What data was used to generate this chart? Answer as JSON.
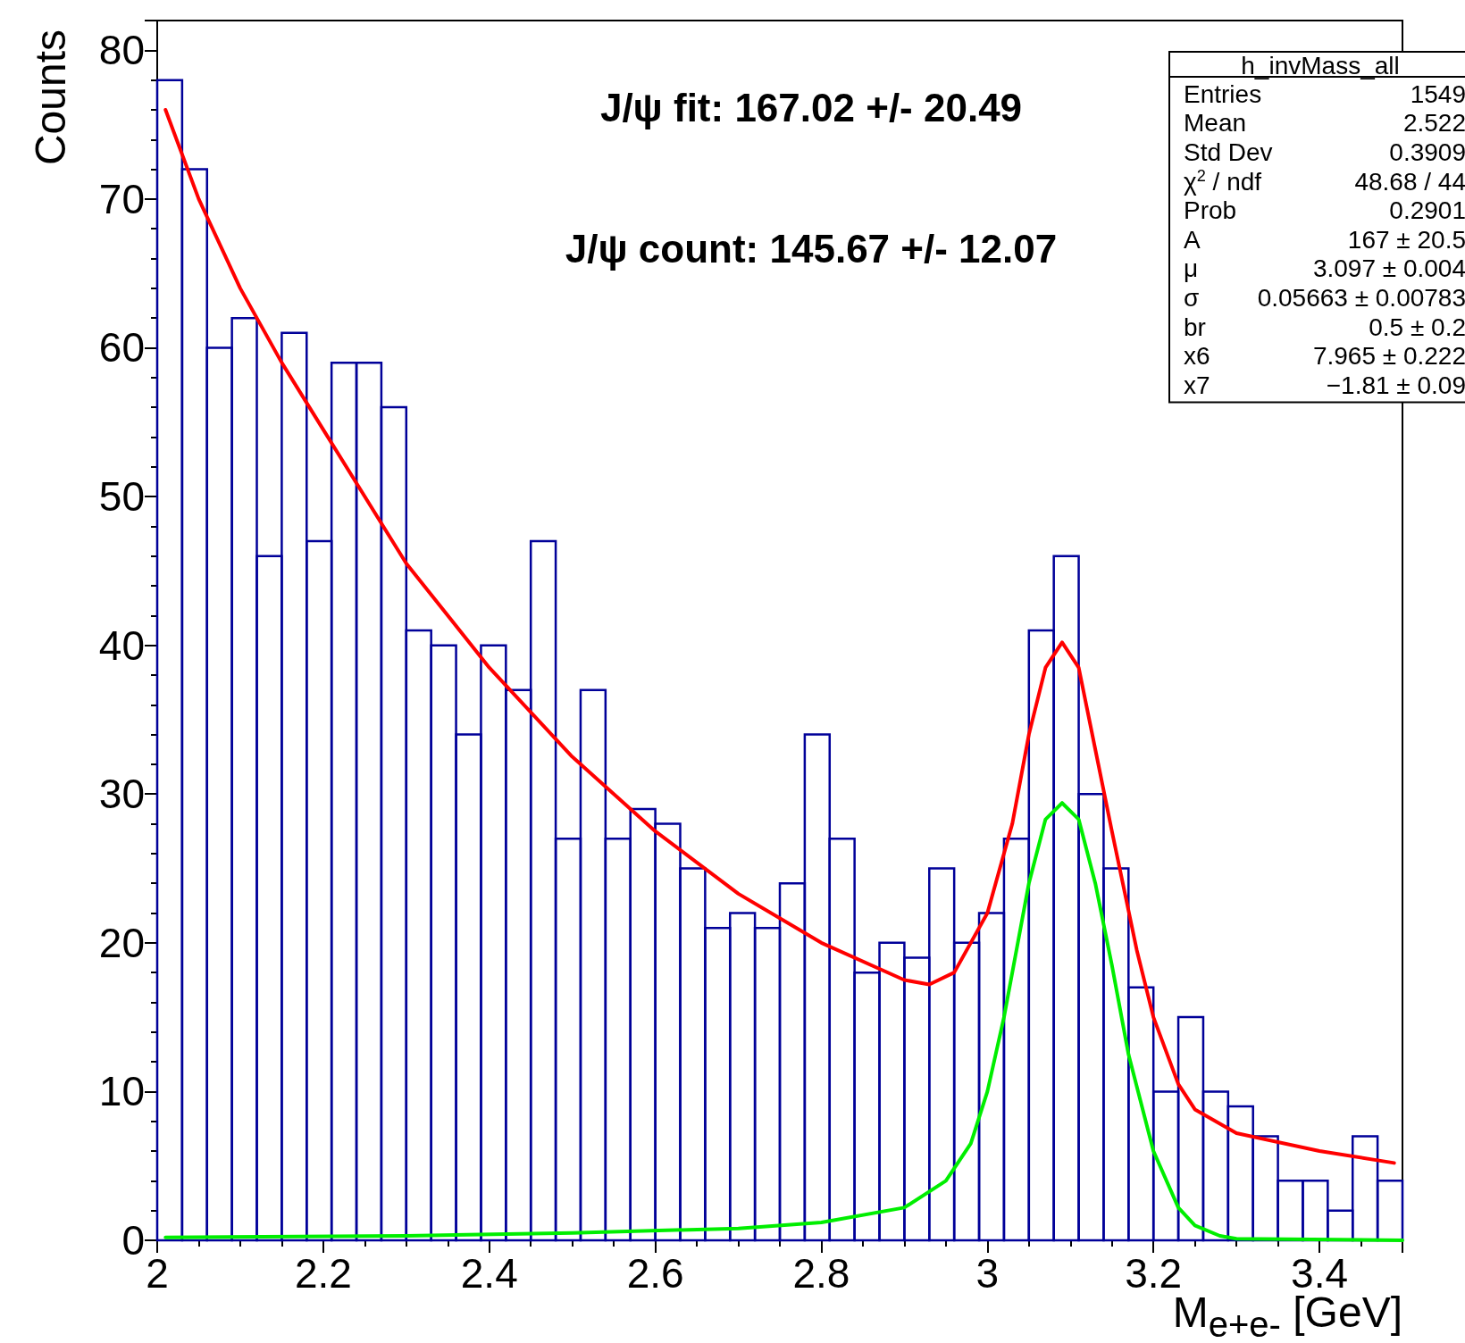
{
  "chart_data": {
    "type": "histogram",
    "xlabel": "M$_{e+e-}$ [GeV]",
    "ylabel": "Counts",
    "bins": [
      2,
      2.03,
      2.06,
      2.09,
      2.12,
      2.15,
      2.18,
      2.21,
      2.24,
      2.27,
      2.3,
      2.33,
      2.36,
      2.39,
      2.42,
      2.45,
      2.48,
      2.51,
      2.54,
      2.57,
      2.6,
      2.63,
      2.66,
      2.69,
      2.72,
      2.75,
      2.78,
      2.81,
      2.84,
      2.87,
      2.9,
      2.93,
      2.96,
      2.99,
      3.02,
      3.05,
      3.08,
      3.11,
      3.14,
      3.17,
      3.2,
      3.23,
      3.26,
      3.29,
      3.32,
      3.35,
      3.38,
      3.41,
      3.44,
      3.47,
      3.5
    ],
    "values": [
      78,
      72,
      60,
      62,
      46,
      61,
      47,
      59,
      59,
      56,
      41,
      40,
      34,
      40,
      37,
      47,
      27,
      37,
      27,
      29,
      28,
      25,
      21,
      22,
      21,
      24,
      34,
      27,
      18,
      20,
      19,
      25,
      20,
      22,
      27,
      41,
      46,
      30,
      25,
      17,
      10,
      15,
      10,
      9,
      7,
      4,
      4,
      2,
      7,
      4
    ],
    "color": "#000099",
    "series": [
      {
        "type": "line",
        "color": "#ff0000",
        "x": [
          2.01,
          2.05,
          2.1,
          2.15,
          2.2,
          2.3,
          2.4,
          2.5,
          2.6,
          2.7,
          2.8,
          2.9,
          2.93,
          2.96,
          3.0,
          3.03,
          3.05,
          3.07,
          3.09,
          3.11,
          3.13,
          3.15,
          3.18,
          3.2,
          3.23,
          3.25,
          3.3,
          3.4,
          3.49
        ],
        "values": [
          76,
          70,
          64,
          59,
          54.5,
          45.5,
          38.5,
          32.5,
          27.5,
          23.3,
          20,
          17.5,
          17.2,
          18,
          22,
          28,
          34,
          38.5,
          40.2,
          38.5,
          33,
          27.5,
          19.5,
          15,
          10.5,
          8.8,
          7.2,
          6,
          5.2
        ]
      },
      {
        "type": "line",
        "color": "#00ee00",
        "x": [
          2.01,
          2.3,
          2.5,
          2.7,
          2.8,
          2.9,
          2.95,
          2.98,
          3.0,
          3.02,
          3.05,
          3.07,
          3.09,
          3.11,
          3.13,
          3.15,
          3.17,
          3.2,
          3.23,
          3.25,
          3.28,
          3.3,
          3.5
        ],
        "values": [
          0.2,
          0.3,
          0.5,
          0.8,
          1.2,
          2.2,
          4,
          6.5,
          10,
          15,
          24,
          28.3,
          29.4,
          28.3,
          24,
          18.5,
          12.5,
          6,
          2.2,
          1,
          0.3,
          0.1,
          0
        ]
      }
    ],
    "xlim": [
      2,
      3.5
    ],
    "xticks": [
      2,
      2.2,
      2.4,
      2.6,
      2.8,
      3,
      3.2,
      3.4
    ],
    "ylim": [
      0,
      82
    ],
    "yticks": [
      0,
      10,
      20,
      30,
      40,
      50,
      60,
      70,
      80
    ],
    "grid": false,
    "marker": "none",
    "line_style": "solid",
    "annotations": [
      "J/ψ fit: 167.02 +/- 20.49",
      "J/ψ count: 145.67 +/- 12.07",
      "h_invMass_all",
      "Entries",
      "1549",
      "Mean",
      "2.522",
      "Std Dev",
      "0.3909",
      "χ$^{2}$ / ndf",
      "48.68 / 44",
      "Prob",
      "0.2901",
      "A",
      "167 ± 20.5",
      "μ",
      "3.097 ± 0.004",
      "σ",
      "0.05663 ± 0.00783",
      "br",
      "0.5 ± 0.2",
      "x6",
      "7.965 ± 0.222",
      "x7",
      "−1.81 ± 0.09"
    ]
  }
}
